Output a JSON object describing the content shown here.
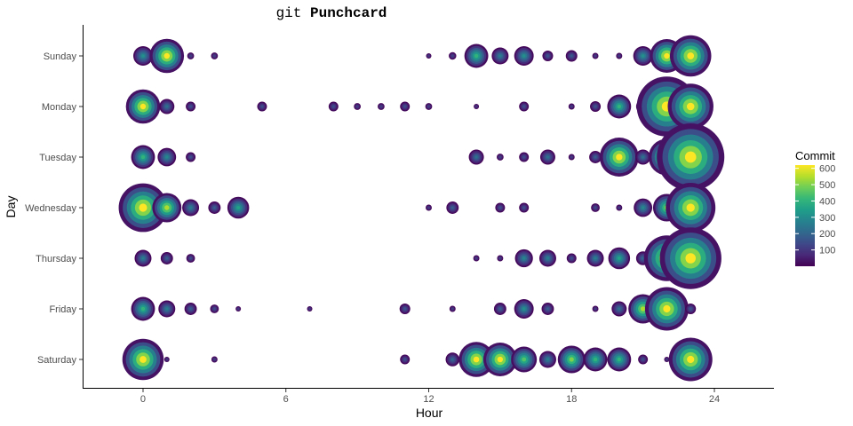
{
  "chart_data": {
    "type": "scatter",
    "title_prefix": "git ",
    "title_bold": "Punchcard",
    "xlabel": "Hour",
    "ylabel": "Day",
    "xlim": [
      -2.5,
      26.5
    ],
    "x_ticks": [
      0,
      6,
      12,
      18,
      24
    ],
    "days": [
      "Sunday",
      "Monday",
      "Tuesday",
      "Wednesday",
      "Thursday",
      "Friday",
      "Saturday"
    ],
    "grid": false,
    "legend": {
      "title": "Commit",
      "placement": "right",
      "ticks": [
        100,
        200,
        300,
        400,
        500,
        600
      ],
      "min": 0,
      "max": 620
    },
    "colormap": [
      "#440154",
      "#482878",
      "#3e4989",
      "#31688e",
      "#26828e",
      "#1f9e89",
      "#35b779",
      "#6ece58",
      "#b5de2b",
      "#fde725"
    ],
    "points": [
      {
        "day": "Sunday",
        "hour": 0,
        "commits": 200
      },
      {
        "day": "Sunday",
        "hour": 1,
        "commits": 620
      },
      {
        "day": "Sunday",
        "hour": 2,
        "commits": 25
      },
      {
        "day": "Sunday",
        "hour": 3,
        "commits": 25
      },
      {
        "day": "Sunday",
        "hour": 12,
        "commits": 15
      },
      {
        "day": "Sunday",
        "hour": 13,
        "commits": 30
      },
      {
        "day": "Sunday",
        "hour": 14,
        "commits": 300
      },
      {
        "day": "Sunday",
        "hour": 15,
        "commits": 150
      },
      {
        "day": "Sunday",
        "hour": 16,
        "commits": 200
      },
      {
        "day": "Sunday",
        "hour": 17,
        "commits": 60
      },
      {
        "day": "Sunday",
        "hour": 18,
        "commits": 70
      },
      {
        "day": "Sunday",
        "hour": 19,
        "commits": 20
      },
      {
        "day": "Sunday",
        "hour": 20,
        "commits": 20
      },
      {
        "day": "Sunday",
        "hour": 21,
        "commits": 200
      },
      {
        "day": "Sunday",
        "hour": 22,
        "commits": 600
      },
      {
        "day": "Sunday",
        "hour": 23,
        "commits": 900
      },
      {
        "day": "Monday",
        "hour": 0,
        "commits": 620
      },
      {
        "day": "Monday",
        "hour": 1,
        "commits": 120
      },
      {
        "day": "Monday",
        "hour": 2,
        "commits": 50
      },
      {
        "day": "Monday",
        "hour": 5,
        "commits": 50
      },
      {
        "day": "Monday",
        "hour": 8,
        "commits": 50
      },
      {
        "day": "Monday",
        "hour": 9,
        "commits": 25
      },
      {
        "day": "Monday",
        "hour": 10,
        "commits": 25
      },
      {
        "day": "Monday",
        "hour": 11,
        "commits": 50
      },
      {
        "day": "Monday",
        "hour": 12,
        "commits": 25
      },
      {
        "day": "Monday",
        "hour": 14,
        "commits": 15
      },
      {
        "day": "Monday",
        "hour": 16,
        "commits": 50
      },
      {
        "day": "Monday",
        "hour": 18,
        "commits": 20
      },
      {
        "day": "Monday",
        "hour": 19,
        "commits": 60
      },
      {
        "day": "Monday",
        "hour": 20,
        "commits": 300
      },
      {
        "day": "Monday",
        "hour": 21,
        "commits": 100
      },
      {
        "day": "Monday",
        "hour": 22,
        "commits": 1900
      },
      {
        "day": "Monday",
        "hour": 23,
        "commits": 1100
      },
      {
        "day": "Tuesday",
        "hour": 0,
        "commits": 300
      },
      {
        "day": "Tuesday",
        "hour": 1,
        "commits": 180
      },
      {
        "day": "Tuesday",
        "hour": 2,
        "commits": 50
      },
      {
        "day": "Tuesday",
        "hour": 14,
        "commits": 120
      },
      {
        "day": "Tuesday",
        "hour": 15,
        "commits": 25
      },
      {
        "day": "Tuesday",
        "hour": 16,
        "commits": 50
      },
      {
        "day": "Tuesday",
        "hour": 17,
        "commits": 120
      },
      {
        "day": "Tuesday",
        "hour": 18,
        "commits": 20
      },
      {
        "day": "Tuesday",
        "hour": 19,
        "commits": 80
      },
      {
        "day": "Tuesday",
        "hour": 20,
        "commits": 800
      },
      {
        "day": "Tuesday",
        "hour": 21,
        "commits": 120
      },
      {
        "day": "Tuesday",
        "hour": 22,
        "commits": 700
      },
      {
        "day": "Tuesday",
        "hour": 23,
        "commits": 2400
      },
      {
        "day": "Wednesday",
        "hour": 0,
        "commits": 1250
      },
      {
        "day": "Wednesday",
        "hour": 1,
        "commits": 450
      },
      {
        "day": "Wednesday",
        "hour": 2,
        "commits": 150
      },
      {
        "day": "Wednesday",
        "hour": 3,
        "commits": 80
      },
      {
        "day": "Wednesday",
        "hour": 4,
        "commits": 250
      },
      {
        "day": "Wednesday",
        "hour": 12,
        "commits": 20
      },
      {
        "day": "Wednesday",
        "hour": 13,
        "commits": 80
      },
      {
        "day": "Wednesday",
        "hour": 15,
        "commits": 50
      },
      {
        "day": "Wednesday",
        "hour": 16,
        "commits": 50
      },
      {
        "day": "Wednesday",
        "hour": 19,
        "commits": 40
      },
      {
        "day": "Wednesday",
        "hour": 20,
        "commits": 20
      },
      {
        "day": "Wednesday",
        "hour": 21,
        "commits": 180
      },
      {
        "day": "Wednesday",
        "hour": 22,
        "commits": 400
      },
      {
        "day": "Wednesday",
        "hour": 23,
        "commits": 1300
      },
      {
        "day": "Thursday",
        "hour": 0,
        "commits": 150
      },
      {
        "day": "Thursday",
        "hour": 1,
        "commits": 80
      },
      {
        "day": "Thursday",
        "hour": 2,
        "commits": 40
      },
      {
        "day": "Thursday",
        "hour": 14,
        "commits": 20
      },
      {
        "day": "Thursday",
        "hour": 15,
        "commits": 20
      },
      {
        "day": "Thursday",
        "hour": 16,
        "commits": 170
      },
      {
        "day": "Thursday",
        "hour": 17,
        "commits": 150
      },
      {
        "day": "Thursday",
        "hour": 18,
        "commits": 50
      },
      {
        "day": "Thursday",
        "hour": 19,
        "commits": 150
      },
      {
        "day": "Thursday",
        "hour": 20,
        "commits": 250
      },
      {
        "day": "Thursday",
        "hour": 21,
        "commits": 100
      },
      {
        "day": "Thursday",
        "hour": 22,
        "commits": 1100
      },
      {
        "day": "Thursday",
        "hour": 23,
        "commits": 2000
      },
      {
        "day": "Friday",
        "hour": 0,
        "commits": 300
      },
      {
        "day": "Friday",
        "hour": 1,
        "commits": 150
      },
      {
        "day": "Friday",
        "hour": 2,
        "commits": 80
      },
      {
        "day": "Friday",
        "hour": 3,
        "commits": 40
      },
      {
        "day": "Friday",
        "hour": 4,
        "commits": 15
      },
      {
        "day": "Friday",
        "hour": 7,
        "commits": 15
      },
      {
        "day": "Friday",
        "hour": 11,
        "commits": 60
      },
      {
        "day": "Friday",
        "hour": 13,
        "commits": 20
      },
      {
        "day": "Friday",
        "hour": 15,
        "commits": 80
      },
      {
        "day": "Friday",
        "hour": 16,
        "commits": 200
      },
      {
        "day": "Friday",
        "hour": 17,
        "commits": 80
      },
      {
        "day": "Friday",
        "hour": 19,
        "commits": 20
      },
      {
        "day": "Friday",
        "hour": 20,
        "commits": 120
      },
      {
        "day": "Friday",
        "hour": 21,
        "commits": 450
      },
      {
        "day": "Friday",
        "hour": 22,
        "commits": 1000
      },
      {
        "day": "Friday",
        "hour": 23,
        "commits": 60
      },
      {
        "day": "Saturday",
        "hour": 0,
        "commits": 900
      },
      {
        "day": "Saturday",
        "hour": 1,
        "commits": 15
      },
      {
        "day": "Saturday",
        "hour": 3,
        "commits": 20
      },
      {
        "day": "Saturday",
        "hour": 11,
        "commits": 50
      },
      {
        "day": "Saturday",
        "hour": 13,
        "commits": 100
      },
      {
        "day": "Saturday",
        "hour": 14,
        "commits": 650
      },
      {
        "day": "Saturday",
        "hour": 15,
        "commits": 600
      },
      {
        "day": "Saturday",
        "hour": 16,
        "commits": 350
      },
      {
        "day": "Saturday",
        "hour": 17,
        "commits": 150
      },
      {
        "day": "Saturday",
        "hour": 18,
        "commits": 400
      },
      {
        "day": "Saturday",
        "hour": 19,
        "commits": 300
      },
      {
        "day": "Saturday",
        "hour": 20,
        "commits": 300
      },
      {
        "day": "Saturday",
        "hour": 21,
        "commits": 50
      },
      {
        "day": "Saturday",
        "hour": 22,
        "commits": 15
      },
      {
        "day": "Saturday",
        "hour": 23,
        "commits": 1000
      }
    ]
  }
}
